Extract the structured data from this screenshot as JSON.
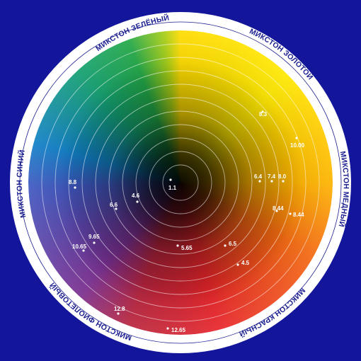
{
  "colors": {
    "background": "#13169a",
    "outer_ring": "#ffffff",
    "ring_text": "#1b1f8f"
  },
  "ring_labels": [
    {
      "id": "green",
      "text": "МИКСТОН ЗЕЛЁНЫЙ"
    },
    {
      "id": "gold",
      "text": "МИКСТОН ЗОЛОТОЙ"
    },
    {
      "id": "copper",
      "text": "МИКСТОН МЕДНЫЙ"
    },
    {
      "id": "red",
      "text": "МИКСТОН КРАСНЫЙ"
    },
    {
      "id": "violet",
      "text": "МИКСТОН ФИОЛЕТОВЫЙ"
    },
    {
      "id": "blue",
      "text": "МИКСТОН СИНИЙ"
    }
  ],
  "points": [
    {
      "label": "1.1"
    },
    {
      "label": "4.6"
    },
    {
      "label": "6.6"
    },
    {
      "label": "8.8"
    },
    {
      "label": "9.65"
    },
    {
      "label": "10.65"
    },
    {
      "label": "5.65"
    },
    {
      "label": "6.5"
    },
    {
      "label": "4.5"
    },
    {
      "label": "12.8"
    },
    {
      "label": "12.65"
    },
    {
      "label": "6.4"
    },
    {
      "label": "7.4"
    },
    {
      "label": "8.0"
    },
    {
      "label": "8.44"
    },
    {
      "label": "8.44"
    },
    {
      "label": "10.00"
    },
    {
      "label": "8.3"
    }
  ]
}
